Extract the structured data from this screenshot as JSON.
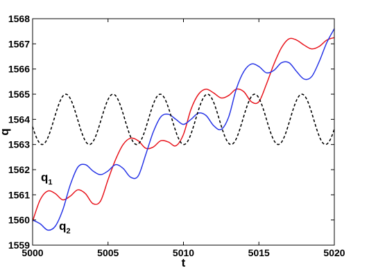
{
  "chart_data": {
    "type": "line",
    "xlabel": "t",
    "ylabel": "q",
    "xlim": [
      5000,
      5020
    ],
    "ylim": [
      1559,
      1568
    ],
    "xticks": [
      5000,
      5005,
      5010,
      5015,
      5020
    ],
    "yticks": [
      1559,
      1560,
      1561,
      1562,
      1563,
      1564,
      1565,
      1566,
      1567,
      1568
    ],
    "grid": false,
    "series": [
      {
        "id": "q1",
        "label_main": "q",
        "label_sub": "1",
        "color": "#e8141c",
        "dash": "solid",
        "x": [
          5000,
          5000.5,
          5001,
          5001.5,
          5002,
          5002.5,
          5003,
          5003.5,
          5004,
          5004.5,
          5005,
          5005.5,
          5006,
          5006.5,
          5007,
          5007.5,
          5008,
          5008.5,
          5009,
          5009.5,
          5010,
          5010.5,
          5011,
          5011.5,
          5012,
          5012.5,
          5013,
          5013.5,
          5014,
          5014.5,
          5015,
          5015.5,
          5016,
          5016.5,
          5017,
          5017.5,
          5018,
          5018.5,
          5019,
          5019.5,
          5020
        ],
        "y": [
          1559.95,
          1560.8,
          1561.15,
          1561.05,
          1560.8,
          1560.95,
          1561.2,
          1561.05,
          1560.65,
          1560.75,
          1561.6,
          1562.4,
          1563.0,
          1563.25,
          1563.15,
          1562.85,
          1562.9,
          1563.15,
          1563.1,
          1562.95,
          1563.4,
          1564.4,
          1565.0,
          1565.2,
          1565.05,
          1564.85,
          1564.95,
          1565.2,
          1565.1,
          1564.7,
          1564.7,
          1565.4,
          1566.2,
          1566.85,
          1567.2,
          1567.15,
          1566.95,
          1566.8,
          1566.9,
          1567.15,
          1567.25
        ]
      },
      {
        "id": "q2",
        "label_main": "q",
        "label_sub": "2",
        "color": "#2634e6",
        "dash": "solid",
        "x": [
          5000,
          5000.5,
          5001,
          5001.5,
          5002,
          5002.5,
          5003,
          5003.5,
          5004,
          5004.5,
          5005,
          5005.5,
          5006,
          5006.5,
          5007,
          5007.5,
          5008,
          5008.5,
          5009,
          5009.5,
          5010,
          5010.5,
          5011,
          5011.5,
          5012,
          5012.5,
          5013,
          5013.5,
          5014,
          5014.5,
          5015,
          5015.5,
          5016,
          5016.5,
          5017,
          5017.5,
          5018,
          5018.5,
          5019,
          5019.5,
          5020
        ],
        "y": [
          1560.0,
          1559.85,
          1559.6,
          1559.75,
          1560.4,
          1561.4,
          1562.1,
          1562.2,
          1561.95,
          1561.8,
          1561.95,
          1562.2,
          1562.05,
          1561.7,
          1561.75,
          1562.6,
          1563.5,
          1564.1,
          1564.2,
          1564.0,
          1563.8,
          1564.0,
          1564.25,
          1564.15,
          1563.75,
          1563.6,
          1564.1,
          1565.2,
          1565.9,
          1566.2,
          1566.1,
          1565.85,
          1565.95,
          1566.25,
          1566.25,
          1565.9,
          1565.6,
          1565.7,
          1566.3,
          1567.05,
          1567.6
        ]
      },
      {
        "id": "driver",
        "color": "#000000",
        "dash": "dashed",
        "func": "sine",
        "center": 1564,
        "amplitude": 1,
        "period": 3.13,
        "peak_t": 5002.2
      }
    ]
  }
}
